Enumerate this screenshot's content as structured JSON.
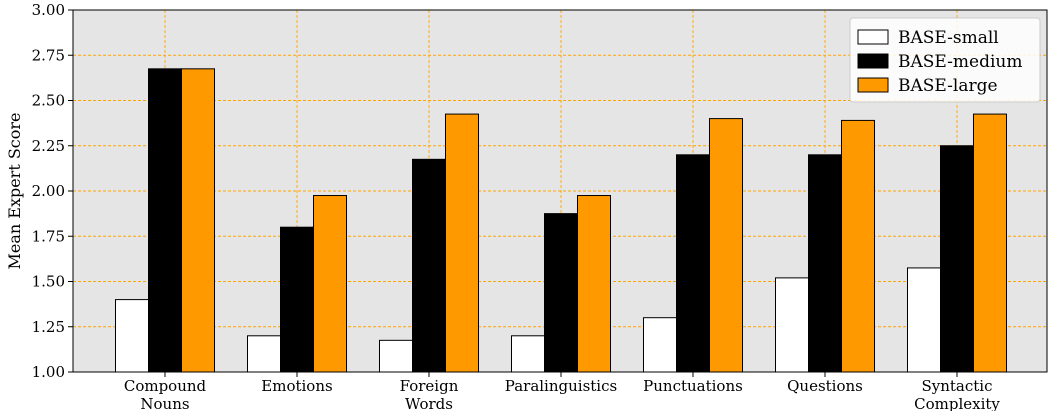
{
  "chart_data": {
    "type": "bar",
    "title": "",
    "xlabel": "",
    "ylabel": "Mean Expert Score",
    "ylim": [
      1.0,
      3.0
    ],
    "yticks": [
      "1.00",
      "1.25",
      "1.50",
      "1.75",
      "2.00",
      "2.25",
      "2.50",
      "2.75",
      "3.00"
    ],
    "categories": [
      [
        "Compound",
        "Nouns"
      ],
      [
        "Emotions"
      ],
      [
        "Foreign",
        "Words"
      ],
      [
        "Paralinguistics"
      ],
      [
        "Punctuations"
      ],
      [
        "Questions"
      ],
      [
        "Syntactic",
        "Complexity"
      ]
    ],
    "series": [
      {
        "name": "BASE-small",
        "color": "#ffffff",
        "values": [
          1.4,
          1.2,
          1.175,
          1.2,
          1.3,
          1.52,
          1.575
        ]
      },
      {
        "name": "BASE-medium",
        "color": "#000000",
        "values": [
          2.675,
          1.8,
          2.175,
          1.875,
          2.2,
          2.2,
          2.25
        ]
      },
      {
        "name": "BASE-large",
        "color": "#ff9900",
        "values": [
          2.675,
          1.975,
          2.425,
          1.975,
          2.4,
          2.39,
          2.425
        ]
      }
    ],
    "grid": true,
    "background": "#e5e5e5",
    "grid_color": "#ffa500",
    "legend_position": "top-right"
  }
}
